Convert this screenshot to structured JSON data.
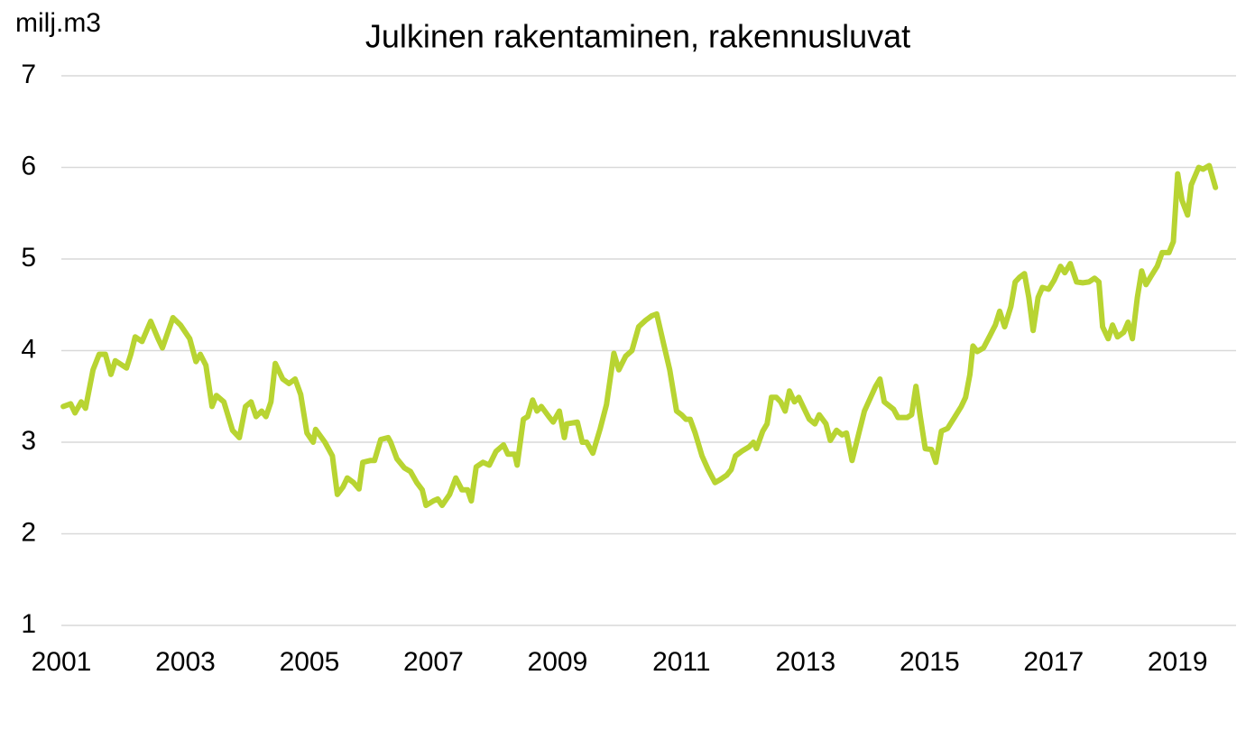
{
  "chart_data": {
    "type": "line",
    "title": "Julkinen rakentaminen, rakennusluvat",
    "y_label": "milj.m3",
    "x": [
      2001.03,
      2001.15,
      2001.22,
      2001.32,
      2001.39,
      2001.51,
      2001.61,
      2001.71,
      2001.8,
      2001.87,
      2002.05,
      2002.12,
      2002.19,
      2002.3,
      2002.44,
      2002.56,
      2002.63,
      2002.8,
      2002.92,
      2003.07,
      2003.17,
      2003.24,
      2003.33,
      2003.43,
      2003.5,
      2003.62,
      2003.76,
      2003.87,
      2003.97,
      2004.06,
      2004.14,
      2004.23,
      2004.3,
      2004.38,
      2004.45,
      2004.57,
      2004.67,
      2004.77,
      2004.86,
      2004.96,
      2005.06,
      2005.1,
      2005.25,
      2005.37,
      2005.45,
      2005.54,
      2005.61,
      2005.71,
      2005.8,
      2005.86,
      2005.98,
      2006.05,
      2006.15,
      2006.27,
      2006.31,
      2006.41,
      2006.53,
      2006.63,
      2006.73,
      2006.82,
      2006.88,
      2007.0,
      2007.07,
      2007.14,
      2007.26,
      2007.36,
      2007.46,
      2007.55,
      2007.61,
      2007.69,
      2007.8,
      2007.9,
      2008.01,
      2008.13,
      2008.2,
      2008.31,
      2008.35,
      2008.45,
      2008.52,
      2008.6,
      2008.67,
      2008.74,
      2008.86,
      2008.93,
      2009.03,
      2009.11,
      2009.15,
      2009.32,
      2009.4,
      2009.47,
      2009.57,
      2009.69,
      2009.79,
      2009.91,
      2009.99,
      2010.1,
      2010.2,
      2010.31,
      2010.42,
      2010.52,
      2010.6,
      2010.71,
      2010.81,
      2010.92,
      2011.0,
      2011.07,
      2011.14,
      2011.22,
      2011.33,
      2011.43,
      2011.54,
      2011.62,
      2011.73,
      2011.8,
      2011.87,
      2011.97,
      2012.09,
      2012.16,
      2012.21,
      2012.31,
      2012.38,
      2012.45,
      2012.53,
      2012.6,
      2012.67,
      2012.74,
      2012.82,
      2012.89,
      2012.96,
      2013.06,
      2013.15,
      2013.22,
      2013.33,
      2013.4,
      2013.5,
      2013.59,
      2013.66,
      2013.75,
      2013.86,
      2013.95,
      2014.05,
      2014.13,
      2014.2,
      2014.27,
      2014.42,
      2014.49,
      2014.64,
      2014.71,
      2014.78,
      2014.85,
      2014.93,
      2015.03,
      2015.1,
      2015.19,
      2015.29,
      2015.41,
      2015.51,
      2015.58,
      2015.65,
      2015.7,
      2015.77,
      2015.87,
      2015.97,
      2016.06,
      2016.13,
      2016.21,
      2016.31,
      2016.38,
      2016.45,
      2016.53,
      2016.6,
      2016.67,
      2016.75,
      2016.82,
      2016.92,
      2017.01,
      2017.11,
      2017.18,
      2017.27,
      2017.37,
      2017.47,
      2017.57,
      2017.66,
      2017.73,
      2017.79,
      2017.88,
      2017.95,
      2018.03,
      2018.13,
      2018.2,
      2018.27,
      2018.35,
      2018.42,
      2018.49,
      2018.56,
      2018.67,
      2018.75,
      2018.86,
      2018.93,
      2019.0,
      2019.07,
      2019.16,
      2019.22,
      2019.34,
      2019.41,
      2019.51,
      2019.61
    ],
    "values": [
      3.39,
      3.42,
      3.32,
      3.44,
      3.37,
      3.79,
      3.96,
      3.96,
      3.74,
      3.89,
      3.81,
      3.96,
      4.15,
      4.1,
      4.32,
      4.13,
      4.03,
      4.36,
      4.28,
      4.13,
      3.88,
      3.96,
      3.84,
      3.39,
      3.51,
      3.44,
      3.13,
      3.05,
      3.39,
      3.44,
      3.28,
      3.34,
      3.28,
      3.44,
      3.86,
      3.69,
      3.64,
      3.69,
      3.52,
      3.1,
      3.0,
      3.14,
      3.0,
      2.85,
      2.43,
      2.51,
      2.61,
      2.56,
      2.49,
      2.78,
      2.8,
      2.8,
      3.03,
      3.05,
      3.0,
      2.82,
      2.72,
      2.68,
      2.56,
      2.48,
      2.31,
      2.36,
      2.38,
      2.31,
      2.43,
      2.61,
      2.48,
      2.48,
      2.36,
      2.73,
      2.78,
      2.75,
      2.9,
      2.97,
      2.87,
      2.87,
      2.75,
      3.25,
      3.28,
      3.46,
      3.34,
      3.39,
      3.28,
      3.22,
      3.34,
      3.05,
      3.2,
      3.22,
      3.0,
      3.0,
      2.88,
      3.15,
      3.41,
      3.97,
      3.79,
      3.94,
      4.0,
      4.26,
      4.33,
      4.38,
      4.4,
      4.08,
      3.79,
      3.34,
      3.3,
      3.25,
      3.25,
      3.1,
      2.85,
      2.7,
      2.56,
      2.59,
      2.64,
      2.7,
      2.85,
      2.9,
      2.95,
      3.0,
      2.93,
      3.12,
      3.2,
      3.49,
      3.49,
      3.44,
      3.34,
      3.56,
      3.44,
      3.49,
      3.39,
      3.25,
      3.2,
      3.3,
      3.2,
      3.02,
      3.13,
      3.08,
      3.1,
      2.8,
      3.1,
      3.34,
      3.49,
      3.61,
      3.69,
      3.44,
      3.36,
      3.27,
      3.27,
      3.3,
      3.61,
      3.28,
      2.93,
      2.92,
      2.78,
      3.12,
      3.15,
      3.28,
      3.39,
      3.49,
      3.74,
      4.05,
      3.99,
      4.03,
      4.16,
      4.28,
      4.43,
      4.26,
      4.48,
      4.75,
      4.8,
      4.84,
      4.58,
      4.22,
      4.58,
      4.69,
      4.67,
      4.77,
      4.92,
      4.85,
      4.95,
      4.75,
      4.74,
      4.75,
      4.79,
      4.75,
      4.26,
      4.13,
      4.28,
      4.15,
      4.2,
      4.31,
      4.13,
      4.58,
      4.87,
      4.72,
      4.8,
      4.92,
      5.07,
      5.07,
      5.19,
      5.93,
      5.64,
      5.48,
      5.81,
      6.0,
      5.98,
      6.02,
      5.78
    ],
    "color": "#b8d432",
    "xlim": [
      2001,
      2020
    ],
    "ylim": [
      1,
      7
    ],
    "xticks": [
      2001,
      2003,
      2005,
      2007,
      2009,
      2011,
      2013,
      2015,
      2017,
      2019
    ],
    "yticks": [
      1,
      2,
      3,
      4,
      5,
      6,
      7
    ],
    "grid": true
  }
}
